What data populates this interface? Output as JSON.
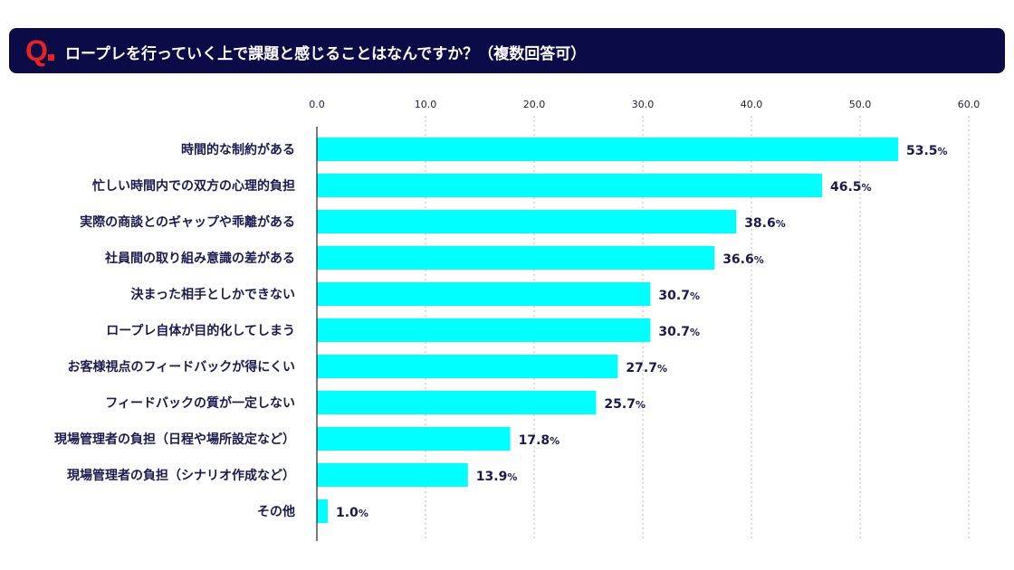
{
  "header": {
    "q_mark": "Q",
    "question": "ロープレを行っていく上で課題と感じることはなんですか？（複数回答可）"
  },
  "colors": {
    "bar": "#00ffff",
    "header_bg": "#0b0b47",
    "q_mark": "#e8231f",
    "text": "#1a1a50"
  },
  "chart_data": {
    "type": "bar",
    "orientation": "horizontal",
    "xlim": [
      0,
      60
    ],
    "ticks": [
      "0.0",
      "10.0",
      "20.0",
      "30.0",
      "40.0",
      "50.0",
      "60.0"
    ],
    "tick_values": [
      0,
      10,
      20,
      30,
      40,
      50,
      60
    ],
    "grid": true,
    "value_suffix": "%",
    "categories": [
      "時間的な制約がある",
      "忙しい時間内での双方の心理的負担",
      "実際の商談とのギャップや乖離がある",
      "社員間の取り組み意識の差がある",
      "決まった相手としかできない",
      "ロープレ自体が目的化してしまう",
      "お客様視点のフィードバックが得にくい",
      "フィードバックの質が一定しない",
      "現場管理者の負担（日程や場所設定など）",
      "現場管理者の負担（シナリオ作成など）",
      "その他"
    ],
    "values": [
      53.5,
      46.5,
      38.6,
      36.6,
      30.7,
      30.7,
      27.7,
      25.7,
      17.8,
      13.9,
      1.0
    ],
    "value_labels": [
      "53.5",
      "46.5",
      "38.6",
      "36.6",
      "30.7",
      "30.7",
      "27.7",
      "25.7",
      "17.8",
      "13.9",
      "1.0"
    ]
  }
}
